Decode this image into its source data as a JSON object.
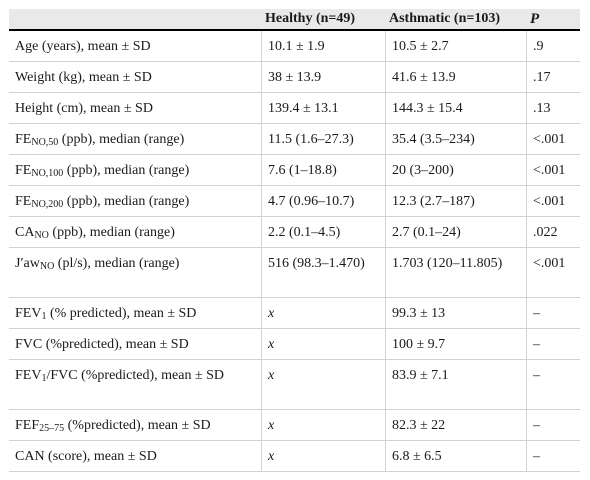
{
  "header": {
    "col0": "",
    "col1": "Healthy (n=49)",
    "col2": "Asthmatic (n=103)",
    "col3": "P"
  },
  "rows": [
    {
      "label_pre": "Age (years), mean ± SD",
      "sub": "",
      "label_post": "",
      "healthy": "10.1 ± 1.9",
      "asthmatic": "10.5 ± 2.7",
      "p": ".9"
    },
    {
      "label_pre": "Weight (kg), mean ± SD",
      "sub": "",
      "label_post": "",
      "healthy": "38 ± 13.9",
      "asthmatic": "41.6 ± 13.9",
      "p": ".17"
    },
    {
      "label_pre": "Height (cm), mean ± SD",
      "sub": "",
      "label_post": "",
      "healthy": "139.4 ± 13.1",
      "asthmatic": "144.3 ± 15.4",
      "p": ".13"
    },
    {
      "label_pre": "FE",
      "sub": "NO,50",
      "label_post": " (ppb), median (range)",
      "healthy": "11.5 (1.6–27.3)",
      "asthmatic": "35.4 (3.5–234)",
      "p": "<.001"
    },
    {
      "label_pre": "FE",
      "sub": "NO,100",
      "label_post": " (ppb), median (range)",
      "healthy": "7.6 (1–18.8)",
      "asthmatic": "20 (3–200)",
      "p": "<.001"
    },
    {
      "label_pre": "FE",
      "sub": "NO,200",
      "label_post": " (ppb), median (range)",
      "healthy": "4.7 (0.96–10.7)",
      "asthmatic": "12.3 (2.7–187)",
      "p": "<.001"
    },
    {
      "label_pre": "CA",
      "sub": "NO",
      "label_post": " (ppb), median (range)",
      "healthy": "2.2 (0.1–4.5)",
      "asthmatic": "2.7 (0.1–24)",
      "p": ".022"
    },
    {
      "label_pre": "J′aw",
      "sub": "NO",
      "label_post": " (pl/s), median (range)",
      "healthy": "516 (98.3–1.470)",
      "asthmatic": "1.703 (120–11.805)",
      "p": "<.001"
    },
    {
      "label_pre": "FEV",
      "sub": "1",
      "label_post": " (% predicted), mean ± SD",
      "healthy": "x",
      "asthmatic": "99.3 ± 13",
      "p": "–"
    },
    {
      "label_pre": "FVC (%predicted), mean ± SD",
      "sub": "",
      "label_post": "",
      "healthy": "x",
      "asthmatic": "100 ± 9.7",
      "p": "–"
    },
    {
      "label_pre": "FEV",
      "sub": "1",
      "label_post": "/FVC (%predicted), mean ± SD",
      "healthy": "x",
      "asthmatic": "83.9 ± 7.1",
      "p": "–"
    },
    {
      "label_pre": "FEF",
      "sub": "25–75",
      "label_post": " (%predicted), mean ± SD",
      "healthy": "x",
      "asthmatic": "82.3 ± 22",
      "p": "–"
    },
    {
      "label_pre": "CAN (score), mean ± SD",
      "sub": "",
      "label_post": "",
      "healthy": "x",
      "asthmatic": "6.8 ± 6.5",
      "p": "–"
    }
  ]
}
